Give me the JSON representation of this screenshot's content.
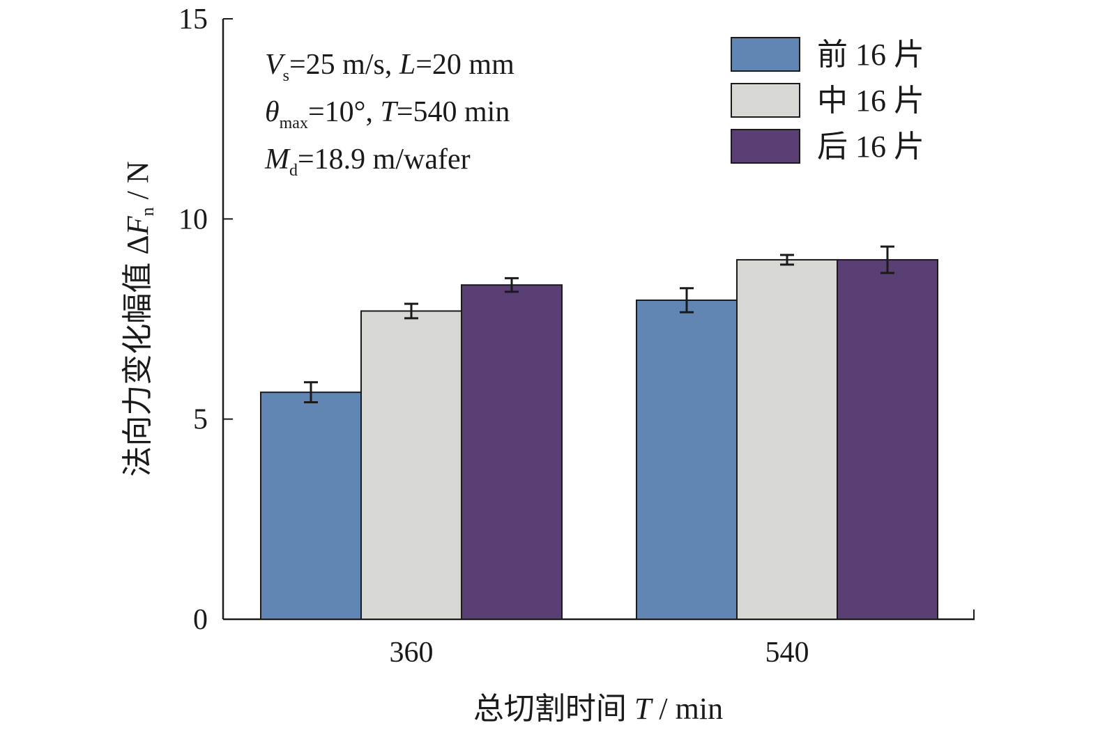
{
  "chart_data": {
    "type": "bar",
    "categories": [
      "360",
      "540"
    ],
    "series": [
      {
        "name": "前 16 片",
        "color": "#6286b4",
        "values": [
          5.67,
          7.97
        ],
        "errors": [
          0.25,
          0.3
        ]
      },
      {
        "name": "中 16 片",
        "color": "#d7d8d4",
        "values": [
          7.7,
          8.98
        ],
        "errors": [
          0.18,
          0.12
        ]
      },
      {
        "name": "后 16 片",
        "color": "#5a3f74",
        "values": [
          8.35,
          8.98
        ],
        "errors": [
          0.17,
          0.33
        ]
      }
    ],
    "ylim": [
      0,
      15
    ],
    "yticks": [
      "0",
      "5",
      "10",
      "15"
    ],
    "xlabel": {
      "text": "总切割时间 ",
      "italic": "T",
      "rest": " / min"
    },
    "ylabel": {
      "text": "法向力变化幅值 Δ",
      "italic": "F",
      "sub": "n",
      "rest": " / N"
    },
    "annotations": [
      {
        "line": "Vs=25 m/s, L=20 mm"
      },
      {
        "line": "θmax=10°, T=540 min"
      },
      {
        "line": "Md=18.9 m/wafer"
      }
    ],
    "legend_position": "top-right",
    "grid": false
  }
}
